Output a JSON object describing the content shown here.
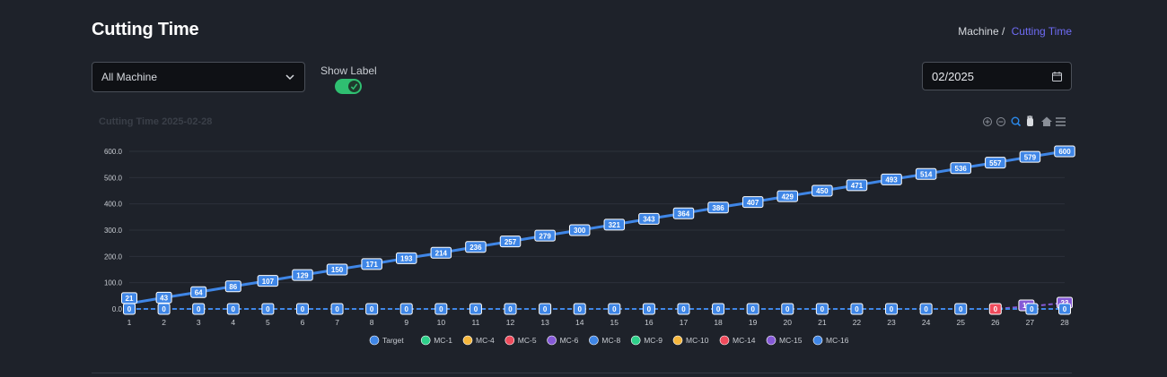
{
  "header": {
    "title": "Cutting Time",
    "breadcrumb_parent": "Machine /",
    "breadcrumb_current": "Cutting Time"
  },
  "filters": {
    "machine_select_value": "All Machine",
    "show_label_text": "Show Label",
    "show_label_on": true,
    "date_value": "02/2025"
  },
  "toolbar_icons": [
    "zoom-in-icon",
    "zoom-out-icon",
    "zoom-select-icon",
    "pan-hand-icon",
    "home-icon",
    "menu-icon"
  ],
  "chart_data": {
    "type": "line",
    "title": "Cutting Time 2025-02-28",
    "xlabel": "",
    "ylabel": "",
    "ylim": [
      0,
      600
    ],
    "yticks": [
      "0.0",
      "100.0",
      "200.0",
      "300.0",
      "400.0",
      "500.0",
      "600.0"
    ],
    "x": [
      1,
      2,
      3,
      4,
      5,
      6,
      7,
      8,
      9,
      10,
      11,
      12,
      13,
      14,
      15,
      16,
      17,
      18,
      19,
      20,
      21,
      22,
      23,
      24,
      25,
      26,
      27,
      28
    ],
    "legend_position": "bottom",
    "grid": true,
    "series": [
      {
        "name": "Target",
        "color": "#3f86e6",
        "values": [
          21,
          43,
          64,
          86,
          107,
          129,
          150,
          171,
          193,
          214,
          236,
          257,
          279,
          300,
          321,
          343,
          364,
          386,
          407,
          429,
          450,
          471,
          493,
          514,
          536,
          557,
          579,
          600
        ]
      },
      {
        "name": "MC-1",
        "color": "#2ed08a",
        "values": [
          0,
          0,
          0,
          0,
          0,
          0,
          0,
          0,
          0,
          0,
          0,
          0,
          0,
          0,
          0,
          0,
          0,
          0,
          0,
          0,
          0,
          0,
          0,
          0,
          0,
          0,
          0,
          0
        ]
      },
      {
        "name": "MC-4",
        "color": "#f6b73c",
        "values": [
          0,
          0,
          0,
          0,
          0,
          0,
          0,
          0,
          0,
          0,
          0,
          0,
          0,
          0,
          0,
          0,
          0,
          0,
          0,
          0,
          0,
          0,
          0,
          0,
          0,
          0,
          0,
          0
        ]
      },
      {
        "name": "MC-5",
        "color": "#ef4b5c",
        "values": [
          0,
          0,
          0,
          0,
          0,
          0,
          0,
          0,
          0,
          0,
          0,
          0,
          0,
          0,
          0,
          0,
          0,
          0,
          0,
          0,
          0,
          0,
          0,
          0,
          0,
          0,
          0,
          0
        ]
      },
      {
        "name": "MC-6",
        "color": "#8559d6",
        "values": [
          0,
          0,
          0,
          0,
          0,
          0,
          0,
          0,
          0,
          0,
          0,
          0,
          0,
          0,
          0,
          0,
          0,
          0,
          0,
          0,
          0,
          0,
          0,
          0,
          0,
          0,
          0,
          0
        ]
      },
      {
        "name": "MC-8",
        "color": "#3f86e6",
        "values": [
          0,
          0,
          0,
          0,
          0,
          0,
          0,
          0,
          0,
          0,
          0,
          0,
          0,
          0,
          0,
          0,
          0,
          0,
          0,
          0,
          0,
          0,
          0,
          0,
          0,
          0,
          0,
          0
        ]
      },
      {
        "name": "MC-9",
        "color": "#2ed08a",
        "values": [
          0,
          0,
          0,
          0,
          0,
          0,
          0,
          0,
          0,
          0,
          0,
          0,
          0,
          0,
          0,
          0,
          0,
          0,
          0,
          0,
          0,
          0,
          0,
          0,
          0,
          0,
          0,
          0
        ]
      },
      {
        "name": "MC-10",
        "color": "#f6b73c",
        "values": [
          0,
          0,
          0,
          0,
          0,
          0,
          0,
          0,
          0,
          0,
          0,
          0,
          0,
          0,
          0,
          0,
          0,
          0,
          0,
          0,
          0,
          0,
          0,
          0,
          0,
          0,
          0,
          0
        ]
      },
      {
        "name": "MC-14",
        "color": "#ef4b5c",
        "values": [
          0,
          0,
          0,
          0,
          0,
          0,
          0,
          0,
          0,
          0,
          0,
          0,
          0,
          0,
          0,
          0,
          0,
          0,
          0,
          0,
          0,
          0,
          0,
          0,
          0,
          0,
          0,
          0
        ]
      },
      {
        "name": "MC-15",
        "color": "#8559d6",
        "values": [
          0,
          0,
          0,
          0,
          0,
          0,
          0,
          0,
          0,
          0,
          0,
          0,
          0,
          0,
          0,
          0,
          0,
          0,
          0,
          0,
          0,
          0,
          0,
          0,
          0,
          0,
          10,
          23
        ]
      },
      {
        "name": "MC-16",
        "color": "#3f86e6",
        "values": [
          0,
          0,
          0,
          0,
          0,
          0,
          0,
          0,
          0,
          0,
          0,
          0,
          0,
          0,
          0,
          0,
          0,
          0,
          0,
          0,
          0,
          0,
          0,
          0,
          0,
          0,
          0,
          0
        ]
      }
    ]
  }
}
